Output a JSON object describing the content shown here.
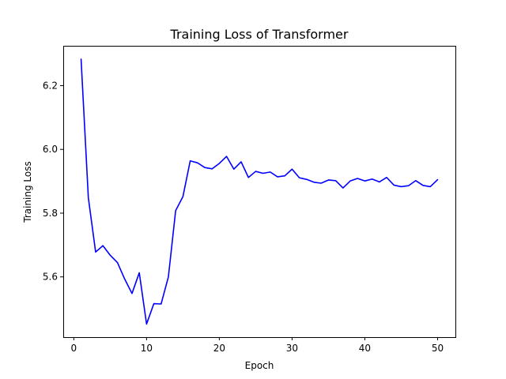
{
  "chart_data": {
    "type": "line",
    "title": "Training Loss of Transformer",
    "xlabel": "Epoch",
    "ylabel": "Training Loss",
    "xlim": [
      -1.45,
      52.45
    ],
    "ylim": [
      5.411,
      6.325
    ],
    "xticks": [
      0,
      10,
      20,
      30,
      40,
      50
    ],
    "xtick_labels": [
      "0",
      "10",
      "20",
      "30",
      "40",
      "50"
    ],
    "yticks": [
      5.6,
      5.8,
      6.0,
      6.2
    ],
    "ytick_labels": [
      "5.6",
      "5.8",
      "6.0",
      "6.2"
    ],
    "grid": false,
    "legend": "none",
    "series": [
      {
        "color": "#0000ff",
        "x": [
          1,
          2,
          3,
          4,
          5,
          6,
          7,
          8,
          9,
          10,
          11,
          12,
          13,
          14,
          15,
          16,
          17,
          18,
          19,
          20,
          21,
          22,
          23,
          24,
          25,
          26,
          27,
          28,
          29,
          30,
          31,
          32,
          33,
          34,
          35,
          36,
          37,
          38,
          39,
          40,
          41,
          42,
          43,
          44,
          45,
          46,
          47,
          48,
          49,
          50
        ],
        "y": [
          6.283,
          5.848,
          5.678,
          5.698,
          5.668,
          5.645,
          5.593,
          5.548,
          5.613,
          5.452,
          5.516,
          5.515,
          5.6,
          5.808,
          5.852,
          5.964,
          5.958,
          5.943,
          5.939,
          5.956,
          5.978,
          5.938,
          5.961,
          5.912,
          5.931,
          5.925,
          5.929,
          5.914,
          5.917,
          5.938,
          5.911,
          5.906,
          5.897,
          5.894,
          5.904,
          5.902,
          5.879,
          5.901,
          5.909,
          5.901,
          5.907,
          5.898,
          5.912,
          5.888,
          5.883,
          5.886,
          5.902,
          5.887,
          5.883,
          5.905
        ]
      }
    ]
  }
}
